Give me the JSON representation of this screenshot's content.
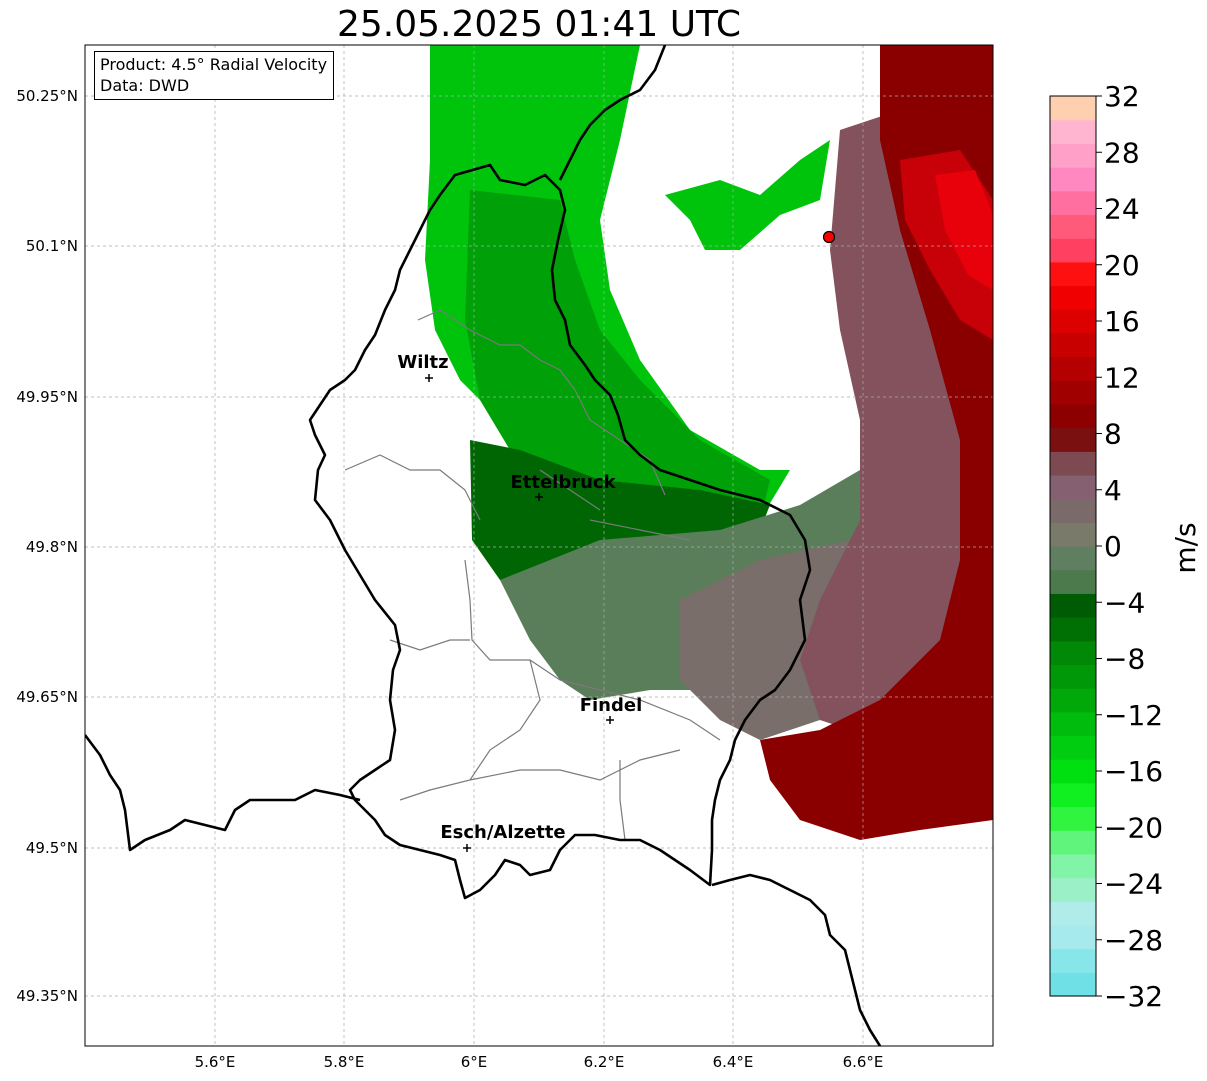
{
  "title": "25.05.2025 01:41 UTC",
  "info": {
    "product": "Product: 4.5° Radial Velocity",
    "data": "Data: DWD"
  },
  "map": {
    "lon_ticks": [
      "5.6°E",
      "5.8°E",
      "6°E",
      "6.2°E",
      "6.4°E",
      "6.6°E"
    ],
    "lat_ticks": [
      "50.25°N",
      "50.1°N",
      "49.95°N",
      "49.8°N",
      "49.65°N",
      "49.5°N",
      "49.35°N"
    ],
    "gridlines": true,
    "cities": [
      {
        "name": "Wiltz",
        "lon": 5.93,
        "lat": 49.97
      },
      {
        "name": "Ettelbruck",
        "lon": 6.1,
        "lat": 49.85
      },
      {
        "name": "Findel",
        "lon": 6.21,
        "lat": 49.63
      },
      {
        "name": "Esch/Alzette",
        "lon": 5.99,
        "lat": 49.5
      }
    ],
    "radar_site": {
      "lon": 6.55,
      "lat": 50.11,
      "color": "#ff0000"
    }
  },
  "colorbar": {
    "unit": "m/s",
    "min": -32,
    "max": 32,
    "tick_labels": [
      "32",
      "28",
      "24",
      "20",
      "16",
      "12",
      "8",
      "4",
      "0",
      "−4",
      "−8",
      "−12",
      "−16",
      "−20",
      "−24",
      "−28",
      "−32"
    ],
    "colors_bottom_to_top": [
      "#6fe0e6",
      "#86e6ea",
      "#a6eaee",
      "#b0ecea",
      "#9cf0c8",
      "#82f4a8",
      "#60f47c",
      "#30f440",
      "#10f020",
      "#00e010",
      "#00cc10",
      "#00bc0c",
      "#00a80a",
      "#009808",
      "#008806",
      "#007004",
      "#005c04",
      "#4c7a4c",
      "#607e60",
      "#7a7a6a",
      "#7a6a6a",
      "#846070",
      "#7c4a50",
      "#7a1010",
      "#8c0000",
      "#a00000",
      "#b40000",
      "#c80000",
      "#dc0000",
      "#f00000",
      "#ff1010",
      "#ff4060",
      "#ff5a7a",
      "#ff70a0",
      "#ff88c0",
      "#ffa0c8",
      "#ffb4d0",
      "#ffd0b0"
    ]
  }
}
